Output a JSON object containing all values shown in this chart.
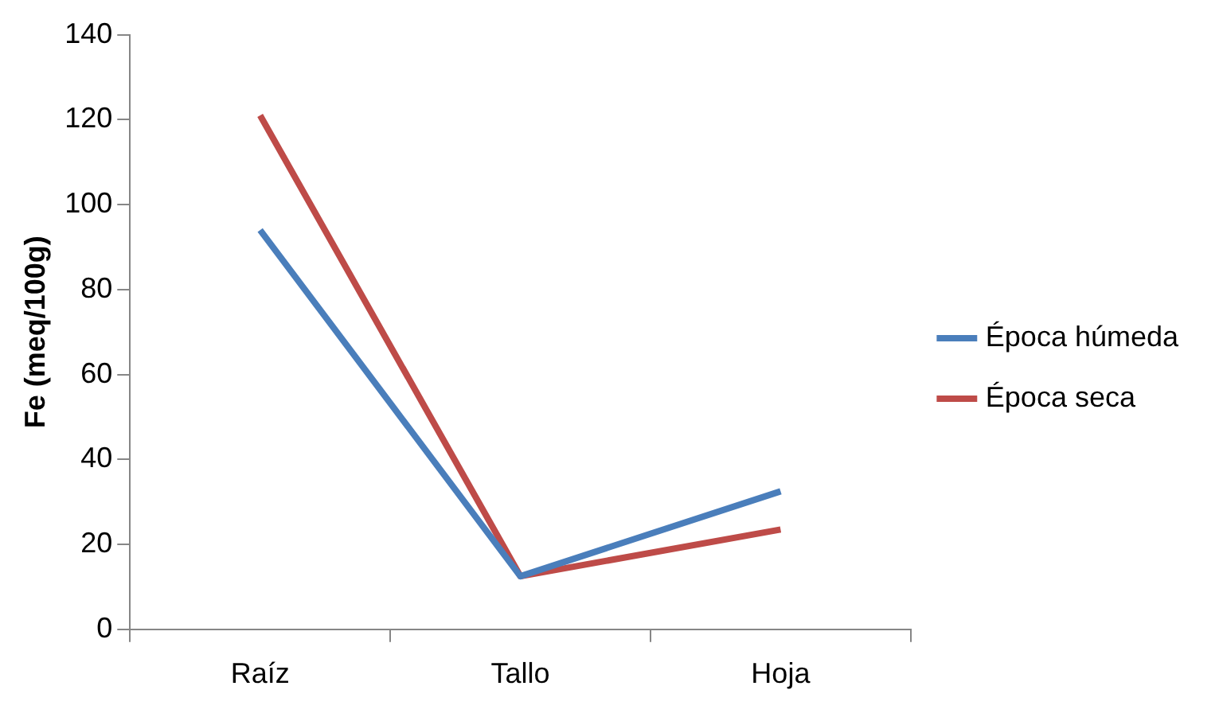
{
  "chart_data": {
    "type": "line",
    "ylabel": "Fe (meq/100g)",
    "categories": [
      "Raíz",
      "Tallo",
      "Hoja"
    ],
    "series": [
      {
        "name": "Época húmeda",
        "color": "#4a7ebb",
        "values": [
          94,
          12.5,
          32.5
        ]
      },
      {
        "name": "Época seca",
        "color": "#be4b48",
        "values": [
          121,
          12.5,
          23.5
        ]
      }
    ],
    "ylim": [
      0,
      140
    ],
    "yticks": [
      0,
      20,
      40,
      60,
      80,
      100,
      120,
      140
    ],
    "grid": false,
    "legend": "right",
    "marker": "none",
    "line_style": "solid"
  }
}
